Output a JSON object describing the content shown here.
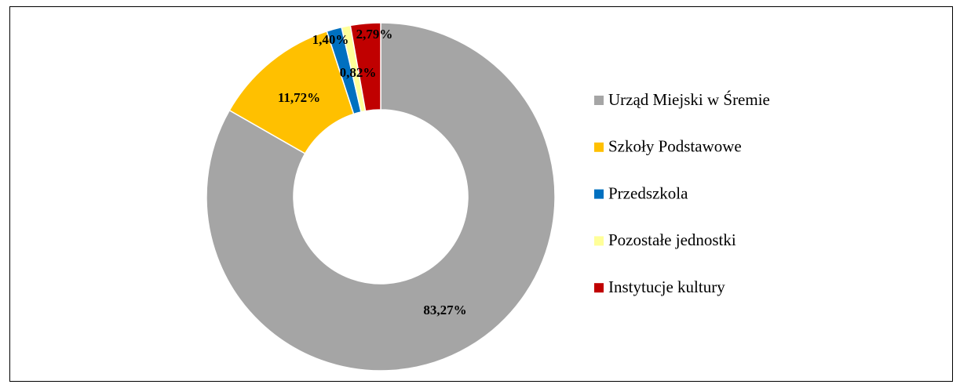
{
  "chart_data": {
    "type": "donut",
    "categories": [
      "Urząd Miejski w Śremie",
      "Szkoły Podstawowe",
      "Przedszkola",
      "Pozostałe jednostki",
      "Instytucje kultury"
    ],
    "values": [
      83.27,
      11.72,
      1.4,
      0.82,
      2.79
    ],
    "value_labels": [
      "83,27%",
      "11,72%",
      "1,40%",
      "0,82%",
      "2,79%"
    ],
    "colors": [
      "#a5a5a5",
      "#ffc000",
      "#0070c0",
      "#ffff99",
      "#c00000"
    ],
    "legend": "right"
  }
}
